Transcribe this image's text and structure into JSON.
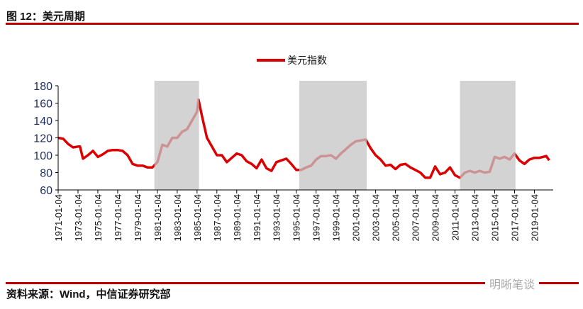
{
  "header": {
    "title": "图 12：美元周期"
  },
  "footer": {
    "source": "资料来源：Wind，中信证券研究部",
    "watermark": "明晰笔谈"
  },
  "colors": {
    "line": "#dd0000",
    "shade": "#c4c4c4",
    "rule": "#c00000",
    "axis_text": "#1f2d5c"
  },
  "chart_data": {
    "type": "line",
    "title": "",
    "legend": {
      "entries": [
        "美元指数"
      ],
      "placement": "top-center"
    },
    "ylim": [
      60,
      180
    ],
    "yticks": [
      60,
      80,
      100,
      120,
      140,
      160,
      180
    ],
    "xlim": [
      1971,
      2020.9
    ],
    "xticks": [
      "1971-01-04",
      "1973-01-04",
      "1975-01-04",
      "1977-01-04",
      "1979-01-04",
      "1981-01-04",
      "1983-01-04",
      "1985-01-04",
      "1987-01-04",
      "1989-01-04",
      "1991-01-04",
      "1993-01-04",
      "1995-01-04",
      "1997-01-04",
      "1999-01-04",
      "2001-01-04",
      "2003-01-04",
      "2005-01-04",
      "2007-01-04",
      "2009-01-04",
      "2011-01-04",
      "2013-01-04",
      "2015-01-04",
      "2017-01-04",
      "2019-01-04"
    ],
    "shaded_periods": [
      [
        1980.7,
        1985.2
      ],
      [
        1995.3,
        2002.1
      ],
      [
        2011.5,
        2017.1
      ]
    ],
    "series": [
      {
        "name": "美元指数",
        "x": [
          1971,
          1971.5,
          1972,
          1972.5,
          1973,
          1973.2,
          1973.5,
          1974,
          1974.5,
          1975,
          1975.5,
          1976,
          1976.5,
          1977,
          1977.5,
          1978,
          1978.5,
          1979,
          1979.5,
          1980,
          1980.5,
          1981,
          1981.5,
          1982,
          1982.5,
          1983,
          1983.5,
          1984,
          1984.5,
          1985,
          1985.15,
          1985.5,
          1986,
          1986.5,
          1987,
          1987.5,
          1988,
          1988.5,
          1989,
          1989.5,
          1990,
          1990.5,
          1991,
          1991.5,
          1992,
          1992.5,
          1993,
          1993.5,
          1994,
          1994.5,
          1995,
          1995.5,
          1996,
          1996.5,
          1997,
          1997.5,
          1998,
          1998.5,
          1999,
          1999.5,
          2000,
          2000.5,
          2001,
          2001.5,
          2002,
          2002.5,
          2003,
          2003.5,
          2004,
          2004.5,
          2005,
          2005.5,
          2006,
          2006.5,
          2007,
          2007.5,
          2008,
          2008.5,
          2009,
          2009.5,
          2010,
          2010.5,
          2011,
          2011.5,
          2012,
          2012.5,
          2013,
          2013.5,
          2014,
          2014.5,
          2015,
          2015.5,
          2016,
          2016.5,
          2017,
          2017.5,
          2018,
          2018.5,
          2019,
          2019.5,
          2020.2,
          2020.5
        ],
        "values": [
          120,
          119,
          113,
          109,
          110,
          110,
          96,
          100,
          105,
          98,
          101,
          105,
          106,
          106,
          105,
          100,
          90,
          88,
          88,
          86,
          86,
          92,
          112,
          110,
          120,
          120,
          127,
          130,
          140,
          150,
          164,
          145,
          120,
          110,
          100,
          100,
          92,
          97,
          102,
          100,
          93,
          90,
          85,
          95,
          85,
          82,
          92,
          94,
          96,
          90,
          83,
          83,
          86,
          88,
          95,
          99,
          99,
          100,
          96,
          102,
          107,
          112,
          116,
          117,
          118,
          108,
          100,
          95,
          88,
          89,
          84,
          89,
          90,
          86,
          83,
          80,
          74,
          74,
          87,
          78,
          80,
          86,
          77,
          74,
          80,
          82,
          80,
          82,
          80,
          81,
          98,
          96,
          98,
          95,
          102,
          94,
          90,
          95,
          97,
          97,
          99,
          94
        ]
      }
    ]
  }
}
